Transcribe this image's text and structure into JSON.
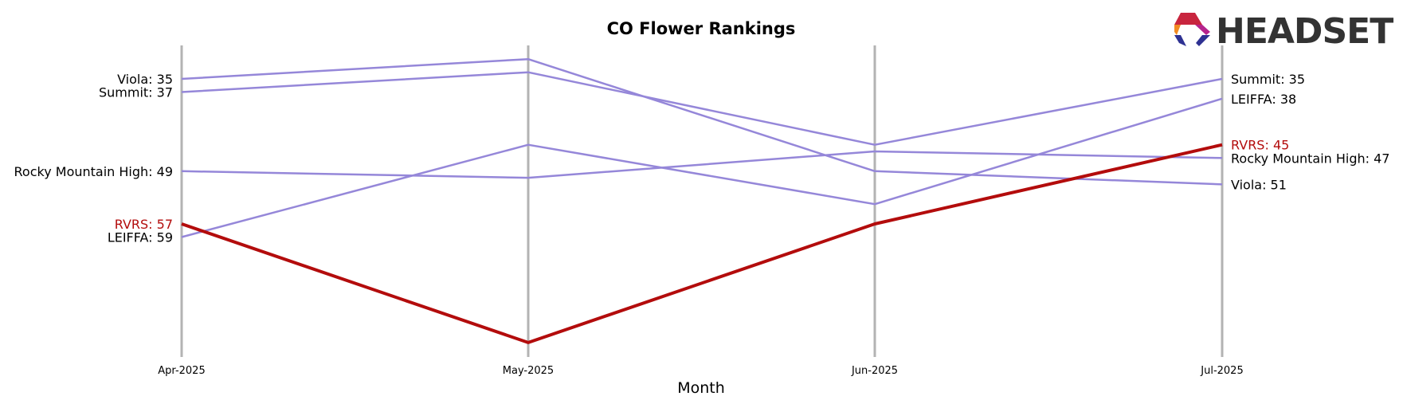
{
  "chart_data": {
    "type": "line",
    "title": "CO Flower Rankings",
    "xlabel": "Month",
    "ylabel": "",
    "x": [
      "Apr-2025",
      "May-2025",
      "Jun-2025",
      "Jul-2025"
    ],
    "y_inverted": true,
    "ylim": [
      30,
      72
    ],
    "grid": "vertical lines at each month",
    "series": [
      {
        "name": "Viola",
        "values": [
          35,
          32,
          49,
          51
        ],
        "color": "#9587d9",
        "highlight": false
      },
      {
        "name": "Summit",
        "values": [
          37,
          34,
          45,
          35
        ],
        "color": "#9587d9",
        "highlight": false
      },
      {
        "name": "Rocky Mountain High",
        "values": [
          49,
          50,
          46,
          47
        ],
        "color": "#9587d9",
        "highlight": false
      },
      {
        "name": "LEIFFA",
        "values": [
          59,
          45,
          54,
          38
        ],
        "color": "#9587d9",
        "highlight": false
      },
      {
        "name": "RVRS",
        "values": [
          57,
          75,
          57,
          45
        ],
        "color": "#b30c0c",
        "highlight": true
      }
    ]
  },
  "logo": {
    "text": "HEADSET"
  },
  "colors": {
    "gridline": "#b3b3b3",
    "highlight": "#b30c0c",
    "muted_line": "#9587d9"
  }
}
